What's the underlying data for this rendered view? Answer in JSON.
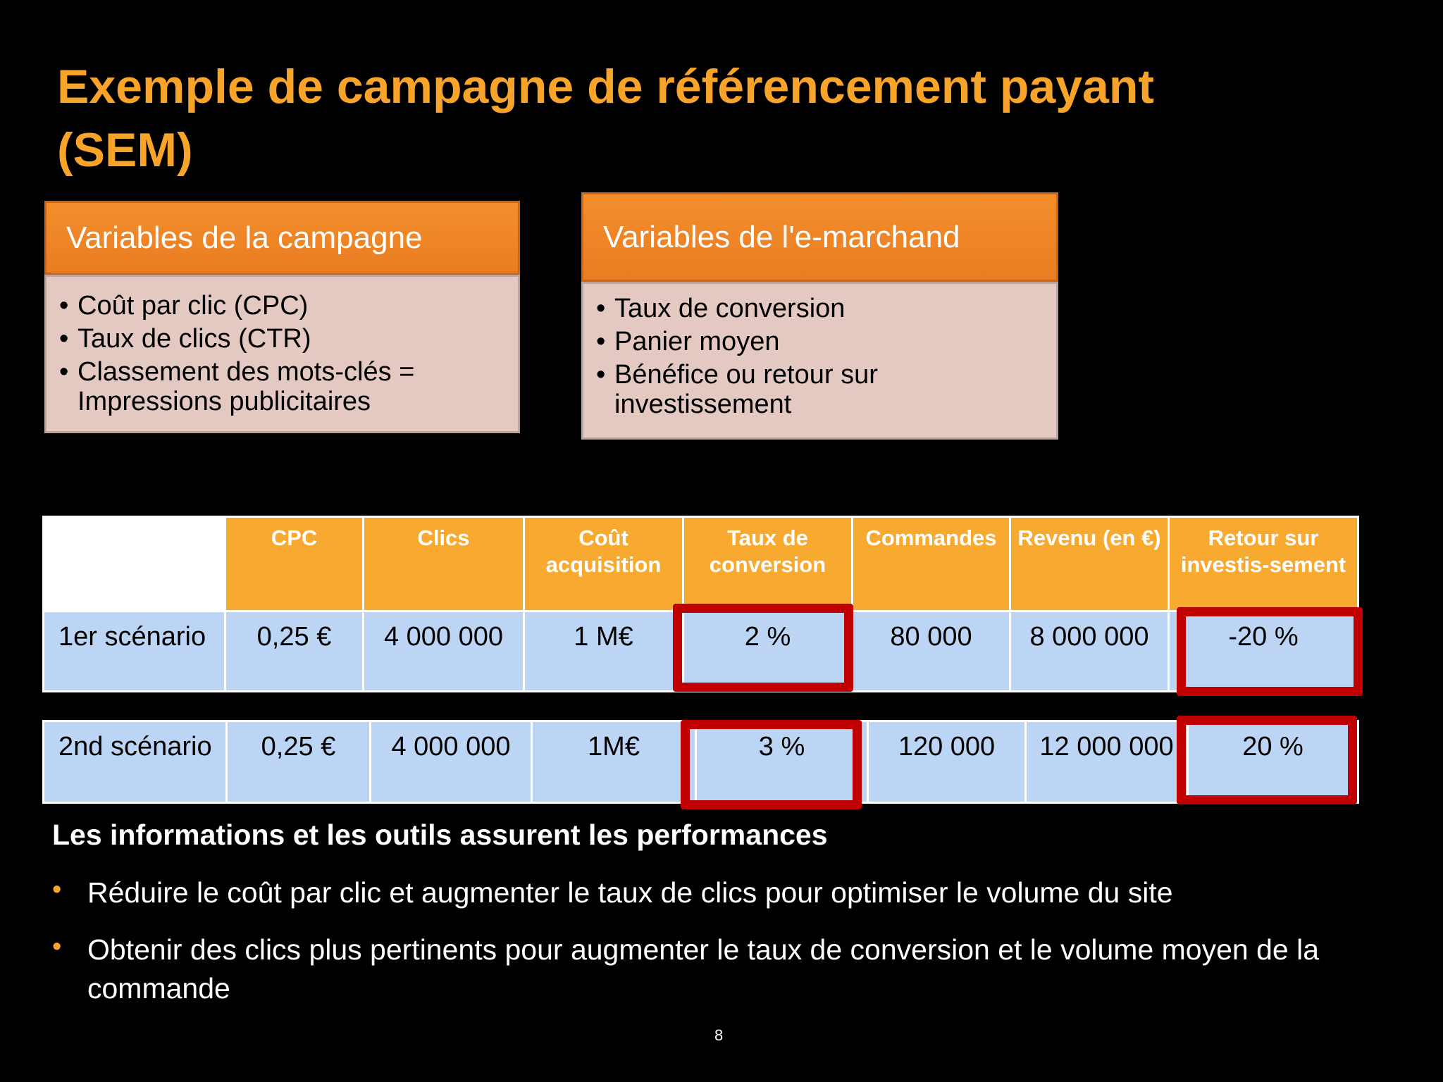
{
  "title": {
    "line1": "Exemple de campagne de référencement payant",
    "line2": "(SEM)"
  },
  "campaign_box": {
    "header": "Variables de la campagne",
    "items": [
      "Coût par clic (CPC)",
      "Taux de clics (CTR)",
      "Classement des mots-clés = Impressions publicitaires"
    ]
  },
  "merchant_box": {
    "header": "Variables de l'e-marchand",
    "items": [
      "Taux de conversion",
      "Panier moyen",
      "Bénéfice ou retour sur investissement"
    ]
  },
  "table": {
    "headers": [
      "CPC",
      "Clics",
      "Coût acquisition",
      "Taux de conversion",
      "Commandes",
      "Revenu (en €)",
      "Retour sur investis-sement"
    ],
    "rows": [
      {
        "label": "1er scénario",
        "cells": [
          "0,25 €",
          "4 000 000",
          "1 M€",
          "2 %",
          "80 000",
          "8 000 000",
          "-20 %"
        ]
      },
      {
        "label": "2nd scénario",
        "cells": [
          "0,25 €",
          "4 000 000",
          "1M€",
          "3 %",
          "120 000",
          "12 000 000",
          "20 %"
        ]
      }
    ]
  },
  "performance": {
    "title": "Les informations et les outils assurent les performances",
    "bullets": [
      "Réduire le coût par clic et augmenter le taux de clics pour optimiser le volume du site",
      "Obtenir des clics plus pertinents pour augmenter le taux de conversion et le volume moyen de la commande"
    ]
  },
  "page_number": "8",
  "colors": {
    "background": "#000000",
    "title": "#f8a42a",
    "header_orange": "#f8a930",
    "box_orange": "#f28e2b",
    "box_body": "#e4c9c3",
    "cell_blue": "#bcd5f4",
    "highlight_red": "#c00000"
  }
}
